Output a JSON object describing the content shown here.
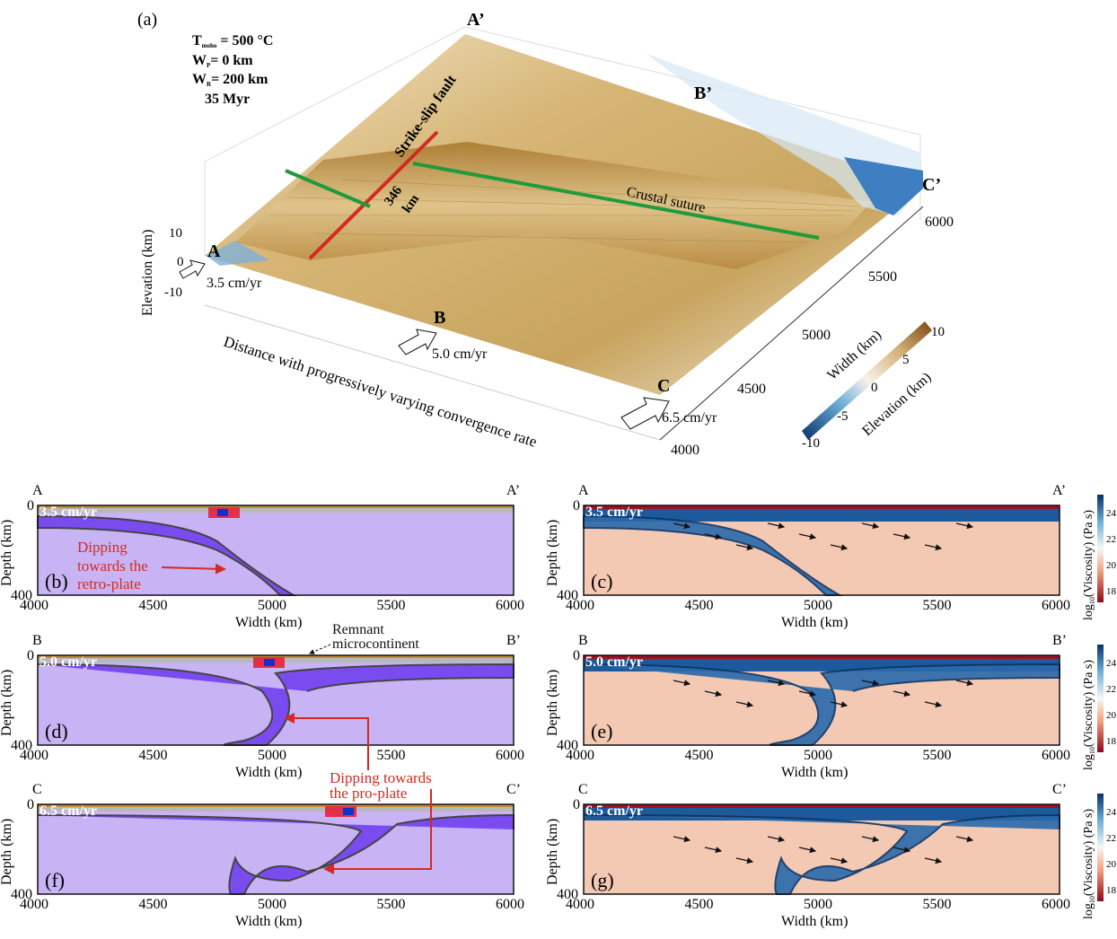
{
  "panel_a": {
    "label": "(a)",
    "params": [
      "T_moho = 500 °C",
      "W_P = 0 km",
      "W_R = 200 km",
      "35 Myr"
    ],
    "params_display": {
      "t": "T",
      "t_sub": "moho",
      "t_rest": " = 500 °C",
      "wp": "W",
      "wp_sub": "P",
      "wp_rest": "= 0 km",
      "wr": "W",
      "wr_sub": "R",
      "wr_rest": "= 200 km",
      "time": "35 Myr"
    },
    "corners": {
      "a": "A",
      "a_prime": "A’",
      "b": "B",
      "b_prime": "B’",
      "c": "C",
      "c_prime": "C’"
    },
    "rates": {
      "a": "3.5 cm/yr",
      "b": "5.0 cm/yr",
      "c": "6.5 cm/yr"
    },
    "fault_label": "Strike-slip fault",
    "offset_label": "346",
    "offset_unit": "km",
    "suture_label": "Crustal suture",
    "elevation_axis": {
      "label": "Elevation (km)",
      "ticks": [
        "10",
        "0",
        "-10"
      ]
    },
    "width_axis": {
      "label": "Width (km)",
      "ticks": [
        "6000",
        "5500",
        "5000",
        "4500",
        "4000"
      ]
    },
    "distance_label": "Distance with progressively varying convergence rate",
    "colorbar": {
      "label": "Elevation (km)",
      "ticks": [
        "10",
        "5",
        "0",
        "-5",
        "-10"
      ]
    },
    "colors": {
      "fault": "#d42a22",
      "suture": "#1f9a3c",
      "high": "#8a5a1a",
      "mid": "#e8d6b0",
      "low": "#0a3f7a"
    }
  },
  "sections": [
    {
      "left": "A",
      "right": "A’",
      "rate": "3.5 cm/yr",
      "comp_label": "(b)",
      "visc_label": "(c)"
    },
    {
      "left": "B",
      "right": "B’",
      "rate": "5.0 cm/yr",
      "comp_label": "(d)",
      "visc_label": "(e)"
    },
    {
      "left": "C",
      "right": "C’",
      "rate": "6.5 cm/yr",
      "comp_label": "(f)",
      "visc_label": "(g)"
    }
  ],
  "axes": {
    "x_ticks": [
      "4000",
      "4500",
      "5000",
      "5500",
      "6000"
    ],
    "x_label": "Width (km)",
    "y_label": "Depth (km)",
    "y_ticks": [
      "0",
      "400"
    ]
  },
  "annotations": {
    "retro": [
      "Dipping",
      "towards the",
      "retro-plate"
    ],
    "remnant": [
      "Remnant",
      "microcontinent"
    ],
    "pro": [
      "Dipping towards",
      "the pro-plate"
    ]
  },
  "viscosity_colorbar": {
    "label": "log10(Viscosity) (Pa s)",
    "label_parts": {
      "pre": "log",
      "sub": "10",
      "post": "(Viscosity) (Pa s)"
    },
    "ticks": [
      "24",
      "22",
      "20",
      "18"
    ]
  }
}
